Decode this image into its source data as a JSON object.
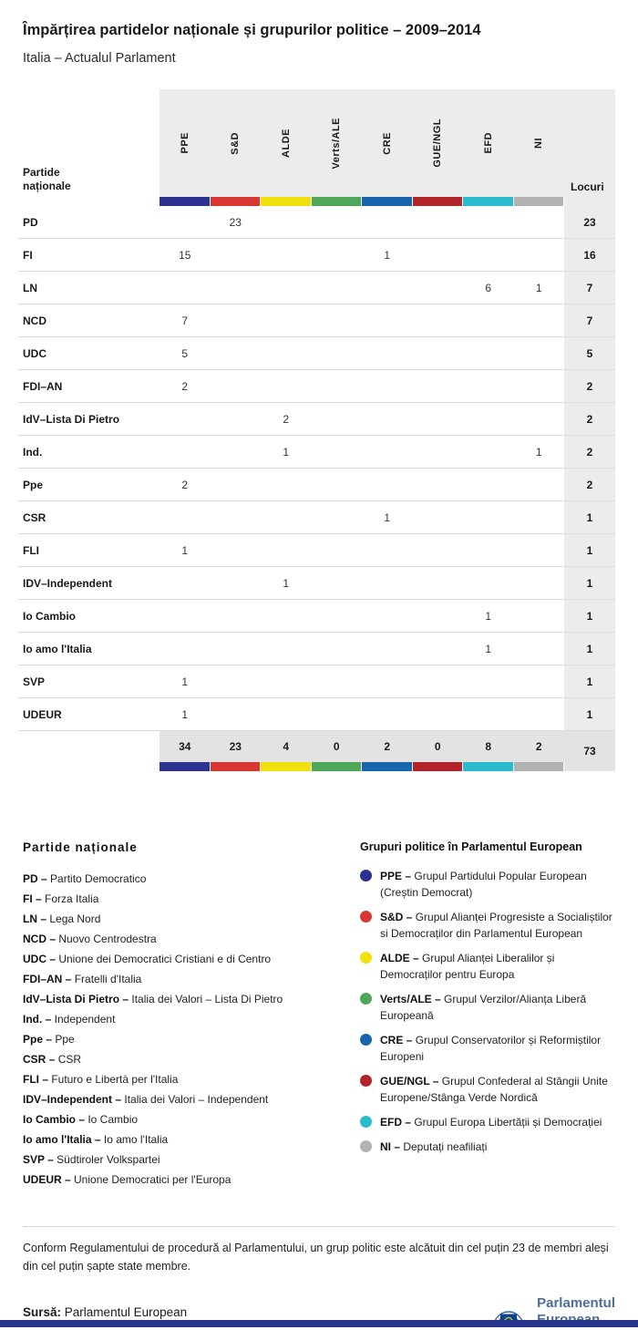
{
  "page": {
    "title": "Împărțirea partidelor naționale și grupurilor politice – 2009–2014",
    "subtitle": "Italia – Actualul Parlament",
    "footer_bar_color": "#27348b"
  },
  "chart_data": {
    "type": "table",
    "title": "Împărțirea partidelor naționale și grupurilor politice – 2009–2014",
    "subtitle": "Italia – Actualul Parlament",
    "row_header": "Partide naționale",
    "seats_header": "Locuri",
    "groups": [
      {
        "label": "PPE",
        "color": "#2d3291"
      },
      {
        "label": "S&D",
        "color": "#da3732"
      },
      {
        "label": "ALDE",
        "color": "#f0e10c"
      },
      {
        "label": "Verts/ALE",
        "color": "#4fa85a"
      },
      {
        "label": "CRE",
        "color": "#1765ac"
      },
      {
        "label": "GUE/NGL",
        "color": "#b3242a"
      },
      {
        "label": "EFD",
        "color": "#2abccd"
      },
      {
        "label": "NI",
        "color": "#b2b2b2"
      }
    ],
    "rows": [
      {
        "party": "PD",
        "values": [
          null,
          23,
          null,
          null,
          null,
          null,
          null,
          null
        ],
        "seats": 23
      },
      {
        "party": "FI",
        "values": [
          15,
          null,
          null,
          null,
          1,
          null,
          null,
          null
        ],
        "seats": 16
      },
      {
        "party": "LN",
        "values": [
          null,
          null,
          null,
          null,
          null,
          null,
          6,
          1
        ],
        "seats": 7
      },
      {
        "party": "NCD",
        "values": [
          7,
          null,
          null,
          null,
          null,
          null,
          null,
          null
        ],
        "seats": 7
      },
      {
        "party": "UDC",
        "values": [
          5,
          null,
          null,
          null,
          null,
          null,
          null,
          null
        ],
        "seats": 5
      },
      {
        "party": "FDI–AN",
        "values": [
          2,
          null,
          null,
          null,
          null,
          null,
          null,
          null
        ],
        "seats": 2
      },
      {
        "party": "IdV–Lista Di Pietro",
        "values": [
          null,
          null,
          2,
          null,
          null,
          null,
          null,
          null
        ],
        "seats": 2
      },
      {
        "party": "Ind.",
        "values": [
          null,
          null,
          1,
          null,
          null,
          null,
          null,
          1
        ],
        "seats": 2
      },
      {
        "party": "Ppe",
        "values": [
          2,
          null,
          null,
          null,
          null,
          null,
          null,
          null
        ],
        "seats": 2
      },
      {
        "party": "CSR",
        "values": [
          null,
          null,
          null,
          null,
          1,
          null,
          null,
          null
        ],
        "seats": 1
      },
      {
        "party": "FLI",
        "values": [
          1,
          null,
          null,
          null,
          null,
          null,
          null,
          null
        ],
        "seats": 1
      },
      {
        "party": "IDV–Independent",
        "values": [
          null,
          null,
          1,
          null,
          null,
          null,
          null,
          null
        ],
        "seats": 1
      },
      {
        "party": "Io Cambio",
        "values": [
          null,
          null,
          null,
          null,
          null,
          null,
          1,
          null
        ],
        "seats": 1
      },
      {
        "party": "Io amo l'Italia",
        "values": [
          null,
          null,
          null,
          null,
          null,
          null,
          1,
          null
        ],
        "seats": 1
      },
      {
        "party": "SVP",
        "values": [
          1,
          null,
          null,
          null,
          null,
          null,
          null,
          null
        ],
        "seats": 1
      },
      {
        "party": "UDEUR",
        "values": [
          1,
          null,
          null,
          null,
          null,
          null,
          null,
          null
        ],
        "seats": 1
      }
    ],
    "totals": {
      "values": [
        34,
        23,
        4,
        0,
        2,
        0,
        8,
        2
      ],
      "seats": 73
    }
  },
  "legend_parties": {
    "title": "Partide naționale",
    "separator": " – ",
    "items": [
      {
        "abbr": "PD",
        "name": "Partito Democratico"
      },
      {
        "abbr": "FI",
        "name": "Forza Italia"
      },
      {
        "abbr": "LN",
        "name": "Lega Nord"
      },
      {
        "abbr": "NCD",
        "name": "Nuovo Centrodestra"
      },
      {
        "abbr": "UDC",
        "name": "Unione dei Democratici Cristiani e di Centro"
      },
      {
        "abbr": "FDI–AN",
        "name": "Fratelli d'Italia"
      },
      {
        "abbr": "IdV–Lista Di Pietro",
        "name": "Italia dei Valori – Lista Di Pietro"
      },
      {
        "abbr": "Ind.",
        "name": "Independent"
      },
      {
        "abbr": "Ppe",
        "name": "Ppe"
      },
      {
        "abbr": "CSR",
        "name": "CSR"
      },
      {
        "abbr": "FLI",
        "name": "Futuro e Libertà per l'Italia"
      },
      {
        "abbr": "IDV–Independent",
        "name": "Italia dei Valori – Independent"
      },
      {
        "abbr": "Io Cambio",
        "name": "Io Cambio"
      },
      {
        "abbr": "Io amo l'Italia",
        "name": "Io amo l'Italia"
      },
      {
        "abbr": "SVP",
        "name": "Südtiroler Volkspartei"
      },
      {
        "abbr": "UDEUR",
        "name": "Unione Democratici per l'Europa"
      }
    ]
  },
  "legend_groups": {
    "title": "Grupuri politice în Parlamentul European",
    "separator": " – ",
    "items": [
      {
        "abbr": "PPE",
        "color": "#2d3291",
        "name": "Grupul Partidului Popular European (Creștin Democrat)"
      },
      {
        "abbr": "S&D",
        "color": "#da3732",
        "name": "Grupul Alianței Progresiste a Socialiștilor si Democraților din Parlamentul European"
      },
      {
        "abbr": "ALDE",
        "color": "#f0e10c",
        "name": "Grupul Alianței Liberalilor și Democraților pentru Europa"
      },
      {
        "abbr": "Verts/ALE",
        "color": "#4fa85a",
        "name": "Grupul Verzilor/Alianța Liberă Europeană"
      },
      {
        "abbr": "CRE",
        "color": "#1765ac",
        "name": "Grupul Conservatorilor și Reformiștilor Europeni"
      },
      {
        "abbr": "GUE/NGL",
        "color": "#b3242a",
        "name": "Grupul Confederal al Stângii Unite Europene/Stânga Verde Nordică"
      },
      {
        "abbr": "EFD",
        "color": "#2abccd",
        "name": "Grupul Europa Libertății și Democrației"
      },
      {
        "abbr": "NI",
        "color": "#b2b2b2",
        "name": "Deputați neafiliați"
      }
    ]
  },
  "footnote": "Conform Regulamentului de procedură al Parlamentului, un grup politic este alcătuit din cel puțin 23 de membri aleși din cel puțin șapte state membre.",
  "source": {
    "label": "Sursă:",
    "text": "Parlamentul European"
  },
  "logo": {
    "line1": "Parlamentul",
    "line2": "European"
  }
}
